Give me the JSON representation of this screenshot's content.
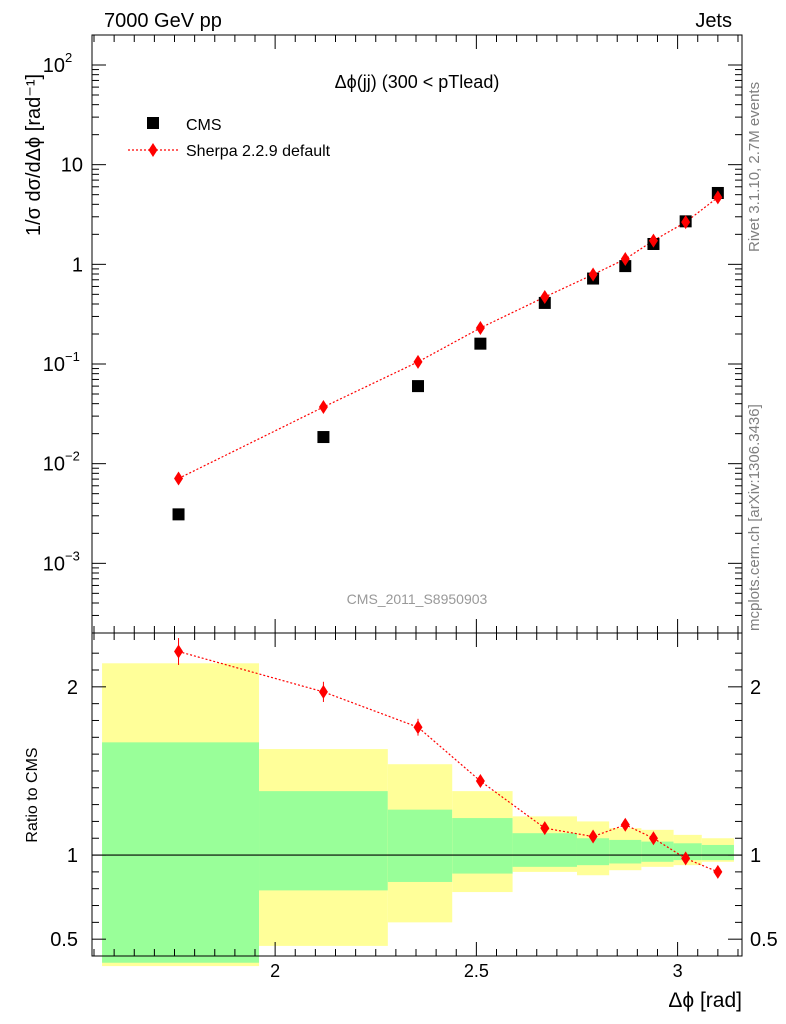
{
  "header": {
    "left": "7000 GeV pp",
    "right": "Jets"
  },
  "side_labels": {
    "rivet": "Rivet 3.1.10,  2.7M events",
    "source": "mcplots.cern.ch [arXiv:1306.3436]"
  },
  "chart_data": [
    {
      "type": "scatter",
      "title": "Δϕ(jj) (300 < pTlead)",
      "ylabel": "1/σ dσ/dΔϕ [rad⁻¹]",
      "xlabel": "Δϕ [rad]",
      "watermark": "CMS_2011_S8950903",
      "yscale": "log",
      "xlim": [
        1.545,
        3.16
      ],
      "ylim": [
        0.0002,
        200
      ],
      "y_ticks": [
        {
          "value": 0.001,
          "mantissa": "10",
          "exp": "−3"
        },
        {
          "value": 0.01,
          "mantissa": "10",
          "exp": "−2"
        },
        {
          "value": 0.1,
          "mantissa": "10",
          "exp": "−1"
        },
        {
          "value": 1,
          "mantissa": "1",
          "exp": ""
        },
        {
          "value": 10,
          "mantissa": "10",
          "exp": ""
        },
        {
          "value": 100,
          "mantissa": "10",
          "exp": "2"
        }
      ],
      "series": [
        {
          "name": "CMS",
          "marker": "square",
          "color": "#000000",
          "x": [
            1.76,
            2.12,
            2.355,
            2.51,
            2.67,
            2.79,
            2.87,
            2.94,
            3.02,
            3.1
          ],
          "y": [
            0.0031,
            0.0185,
            0.06,
            0.16,
            0.41,
            0.72,
            0.96,
            1.6,
            2.7,
            5.2
          ]
        },
        {
          "name": "Sherpa 2.2.9 default",
          "marker": "diamond",
          "color": "#ff0000",
          "line": "dotted",
          "x": [
            1.76,
            2.12,
            2.355,
            2.51,
            2.67,
            2.79,
            2.87,
            2.94,
            3.02,
            3.1
          ],
          "y": [
            0.0071,
            0.037,
            0.105,
            0.23,
            0.47,
            0.79,
            1.13,
            1.73,
            2.65,
            4.7
          ]
        }
      ]
    },
    {
      "type": "line",
      "ylabel": "Ratio to CMS",
      "xlabel": "Δϕ [rad]",
      "xlim": [
        1.545,
        3.16
      ],
      "ylim": [
        0.4,
        2.32
      ],
      "x_ticks": [
        2,
        2.5,
        3
      ],
      "y_ticks": [
        0.5,
        1,
        2
      ],
      "reference_line": 1,
      "bands": [
        {
          "x0": 1.57,
          "x1": 1.96,
          "inner": [
            0.36,
            1.67
          ],
          "outer": [
            0.34,
            2.14
          ]
        },
        {
          "x0": 1.96,
          "x1": 2.28,
          "inner": [
            0.79,
            1.38
          ],
          "outer": [
            0.46,
            1.63
          ]
        },
        {
          "x0": 2.28,
          "x1": 2.44,
          "inner": [
            0.84,
            1.27
          ],
          "outer": [
            0.6,
            1.54
          ]
        },
        {
          "x0": 2.44,
          "x1": 2.59,
          "inner": [
            0.89,
            1.22
          ],
          "outer": [
            0.78,
            1.38
          ]
        },
        {
          "x0": 2.59,
          "x1": 2.75,
          "inner": [
            0.93,
            1.13
          ],
          "outer": [
            0.9,
            1.23
          ]
        },
        {
          "x0": 2.75,
          "x1": 2.83,
          "inner": [
            0.94,
            1.1
          ],
          "outer": [
            0.88,
            1.2
          ]
        },
        {
          "x0": 2.83,
          "x1": 2.91,
          "inner": [
            0.95,
            1.09
          ],
          "outer": [
            0.91,
            1.16
          ]
        },
        {
          "x0": 2.91,
          "x1": 2.99,
          "inner": [
            0.96,
            1.08
          ],
          "outer": [
            0.93,
            1.15
          ]
        },
        {
          "x0": 2.99,
          "x1": 3.06,
          "inner": [
            0.97,
            1.07
          ],
          "outer": [
            0.94,
            1.12
          ]
        },
        {
          "x0": 3.06,
          "x1": 3.14,
          "inner": [
            0.97,
            1.06
          ],
          "outer": [
            0.96,
            1.1
          ]
        }
      ],
      "series": [
        {
          "name": "Sherpa 2.2.9 default",
          "color": "#ff0000",
          "x": [
            1.76,
            2.12,
            2.355,
            2.51,
            2.67,
            2.79,
            2.87,
            2.94,
            3.02,
            3.1
          ],
          "y": [
            2.21,
            1.97,
            1.76,
            1.44,
            1.16,
            1.11,
            1.18,
            1.1,
            0.98,
            0.9
          ],
          "err": [
            0.08,
            0.06,
            0.05,
            0.02,
            0.02,
            0.02,
            0.02,
            0.02,
            0.01,
            0.01
          ]
        }
      ],
      "colors": {
        "inner_band": "#99ff99",
        "outer_band": "#ffff99",
        "data": "#ff0000"
      }
    }
  ]
}
